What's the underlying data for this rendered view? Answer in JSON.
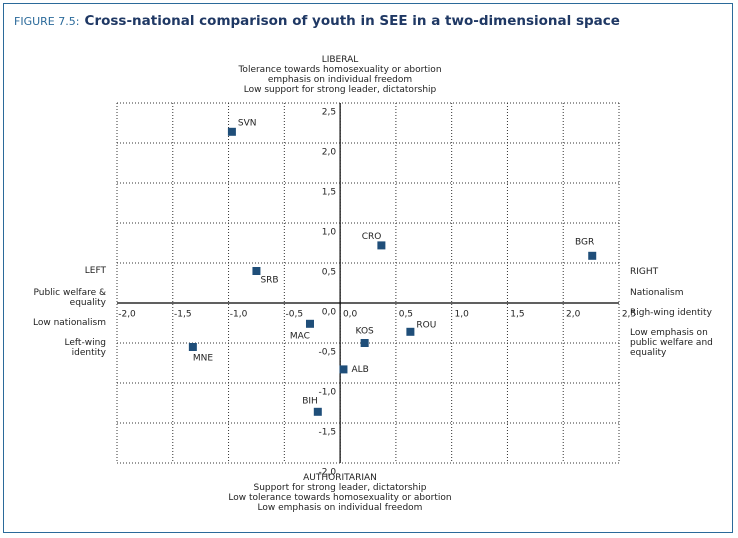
{
  "chart_data": {
    "type": "scatter",
    "figure_label": "FIGURE 7.5:",
    "title": "Cross-national comparison of youth in SEE in a two-dimensional space",
    "point_labels": [
      "SVN",
      "BGR",
      "CRO",
      "SRB",
      "MAC",
      "KOS",
      "ROU",
      "MNE",
      "ALB",
      "BIH"
    ],
    "x": [
      -0.97,
      2.26,
      0.37,
      -0.75,
      -0.27,
      0.22,
      0.63,
      -1.32,
      0.03,
      -0.2
    ],
    "y": [
      2.14,
      0.59,
      0.72,
      0.4,
      -0.26,
      -0.5,
      -0.36,
      -0.55,
      -0.83,
      -1.36
    ],
    "color": "#1f4e79",
    "xlim": [
      -2,
      2.5
    ],
    "ylim": [
      -2,
      2.5
    ],
    "xticks": [
      {
        "value": -2,
        "label": "-2,0"
      },
      {
        "value": -1.5,
        "label": "-1,5"
      },
      {
        "value": -1,
        "label": "-1,0"
      },
      {
        "value": -0.5,
        "label": "-0,5"
      },
      {
        "value": 0,
        "label": "0,0"
      },
      {
        "value": 0.5,
        "label": "0,5"
      },
      {
        "value": 1,
        "label": "1,0"
      },
      {
        "value": 1.5,
        "label": "1,5"
      },
      {
        "value": 2,
        "label": "2,0"
      },
      {
        "value": 2.5,
        "label": "2,5"
      }
    ],
    "yticks": [
      {
        "value": -2,
        "label": "-2,0"
      },
      {
        "value": -1.5,
        "label": "-1,5"
      },
      {
        "value": -1,
        "label": "-1,0"
      },
      {
        "value": -0.5,
        "label": "-0,5"
      },
      {
        "value": 0,
        "label": "0,0"
      },
      {
        "value": 0.5,
        "label": "0,5"
      },
      {
        "value": 1,
        "label": "1,0"
      },
      {
        "value": 1.5,
        "label": "1,5"
      },
      {
        "value": 2,
        "label": "2,0"
      },
      {
        "value": 2.5,
        "label": "2,5"
      }
    ],
    "grid": true,
    "annotations": {
      "top": [
        "LIBERAL",
        "Tolerance towards homosexuality or abortion",
        "emphasis on individual freedom",
        "Low support for strong leader, dictatorship"
      ],
      "bottom": [
        "AUTHORITARIAN",
        "Support for strong leader, dictatorship",
        "Low tolerance towards homosexuality or abortion",
        "Low emphasis on individual freedom"
      ],
      "left": [
        "LEFT",
        "Public welfare & equality",
        "Low nationalism",
        "Left-wing identity"
      ],
      "right": [
        "RIGHT",
        "Nationalism",
        "Righ-wing identity",
        "Low emphasis on public welfare and equality"
      ]
    }
  }
}
